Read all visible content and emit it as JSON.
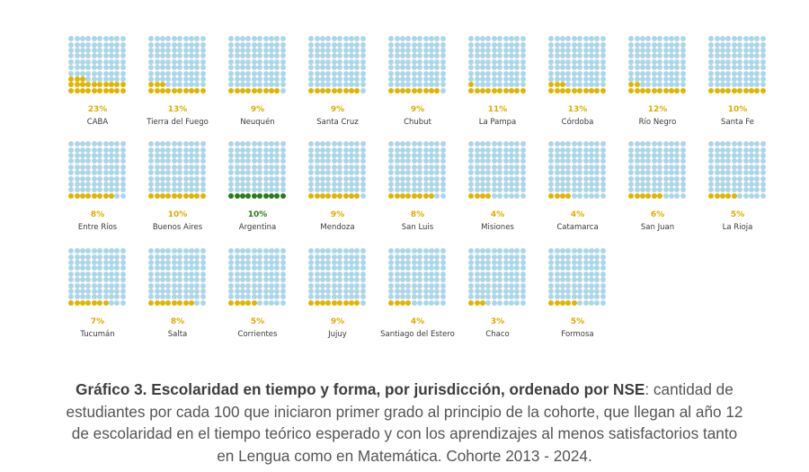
{
  "colors": {
    "empty": "#acd6e8",
    "filled": "#e0b400",
    "national": "#2a7a1a",
    "pct_label": "#d9ae00",
    "name_label": "#3a3a3a",
    "caption": "#555555"
  },
  "caption": {
    "bold": "Gráfico 3. Escolaridad en tiempo y forma, por jurisdicción, ordenado por NSE",
    "rest": ": cantidad de estudiantes por cada 100 que iniciaron primer grado al principio de la cohorte, que llegan al año 12 de escolaridad en el tiempo teórico esperado y con los aprendizajes al menos satisfactorios tanto en Lengua como en Matemática. Cohorte 2013 - 2024."
  },
  "chart_data": {
    "type": "waffle",
    "title": "Gráfico 3. Escolaridad en tiempo y forma, por jurisdicción, ordenado por NSE",
    "subtitle": "cantidad de estudiantes por cada 100 que iniciaron primer grado al principio de la cohorte, que llegan al año 12 de escolaridad en el tiempo teórico esperado y con los aprendizajes al menos satisfactorios tanto en Lengua como en Matemática. Cohorte 2013 - 2024.",
    "grid": [
      10,
      10
    ],
    "unit": "%",
    "categories": [
      "CABA",
      "Tierra del Fuego",
      "Neuquén",
      "Santa Cruz",
      "Chubut",
      "La Pampa",
      "Córdoba",
      "Río Negro",
      "Santa Fe",
      "Entre Ríos",
      "Buenos Aires",
      "Argentina",
      "Mendoza",
      "San Luis",
      "Misiones",
      "Catamarca",
      "San Juan",
      "La Rioja",
      "Tucumán",
      "Salta",
      "Corrientes",
      "Jujuy",
      "Santiago del Estero",
      "Chaco",
      "Formosa"
    ],
    "values": [
      23,
      13,
      9,
      9,
      9,
      11,
      13,
      12,
      10,
      8,
      10,
      10,
      9,
      8,
      4,
      4,
      6,
      5,
      7,
      8,
      5,
      9,
      4,
      3,
      5
    ],
    "highlight": "Argentina",
    "layout": {
      "columns": 9,
      "rows": 3
    }
  },
  "panels": [
    {
      "name": "CABA",
      "value": 23,
      "pct": "23%"
    },
    {
      "name": "Tierra del Fuego",
      "value": 13,
      "pct": "13%"
    },
    {
      "name": "Neuquén",
      "value": 9,
      "pct": "9%"
    },
    {
      "name": "Santa Cruz",
      "value": 9,
      "pct": "9%"
    },
    {
      "name": "Chubut",
      "value": 9,
      "pct": "9%"
    },
    {
      "name": "La Pampa",
      "value": 11,
      "pct": "11%"
    },
    {
      "name": "Córdoba",
      "value": 13,
      "pct": "13%"
    },
    {
      "name": "Río Negro",
      "value": 12,
      "pct": "12%"
    },
    {
      "name": "Santa Fe",
      "value": 10,
      "pct": "10%"
    },
    {
      "name": "Entre Ríos",
      "value": 8,
      "pct": "8%"
    },
    {
      "name": "Buenos Aires",
      "value": 10,
      "pct": "10%"
    },
    {
      "name": "Argentina",
      "value": 10,
      "pct": "10%",
      "national": true
    },
    {
      "name": "Mendoza",
      "value": 9,
      "pct": "9%"
    },
    {
      "name": "San Luis",
      "value": 8,
      "pct": "8%"
    },
    {
      "name": "Misiones",
      "value": 4,
      "pct": "4%"
    },
    {
      "name": "Catamarca",
      "value": 4,
      "pct": "4%"
    },
    {
      "name": "San Juan",
      "value": 6,
      "pct": "6%"
    },
    {
      "name": "La Rioja",
      "value": 5,
      "pct": "5%"
    },
    {
      "name": "Tucumán",
      "value": 7,
      "pct": "7%"
    },
    {
      "name": "Salta",
      "value": 8,
      "pct": "8%"
    },
    {
      "name": "Corrientes",
      "value": 5,
      "pct": "5%"
    },
    {
      "name": "Jujuy",
      "value": 9,
      "pct": "9%"
    },
    {
      "name": "Santiago del Estero",
      "value": 4,
      "pct": "4%"
    },
    {
      "name": "Chaco",
      "value": 3,
      "pct": "3%"
    },
    {
      "name": "Formosa",
      "value": 5,
      "pct": "5%"
    }
  ]
}
